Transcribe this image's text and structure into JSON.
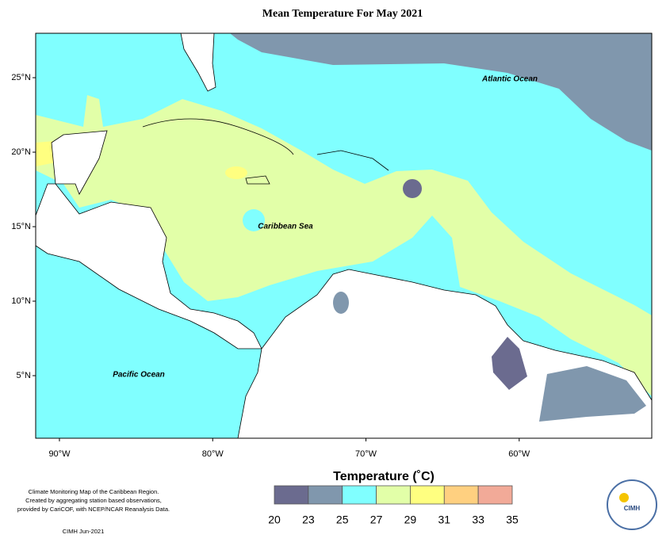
{
  "title": "Mean Temperature For May 2021",
  "map": {
    "lat_ticks": [
      {
        "value": 25,
        "label": "25°N"
      },
      {
        "value": 20,
        "label": "20°N"
      },
      {
        "value": 15,
        "label": "15°N"
      },
      {
        "value": 10,
        "label": "10°N"
      },
      {
        "value": 5,
        "label": "5°N"
      }
    ],
    "lon_ticks": [
      {
        "value": -90,
        "label": "90°W"
      },
      {
        "value": -80,
        "label": "80°W"
      },
      {
        "value": -70,
        "label": "70°W"
      },
      {
        "value": -60,
        "label": "60°W"
      }
    ],
    "labels": [
      "Atlantic Ocean",
      "Caribbean Sea",
      "Pacific Ocean"
    ]
  },
  "legend": {
    "title": "Temperature (˚C)",
    "ticks": [
      20,
      23,
      25,
      27,
      29,
      31,
      33,
      35
    ],
    "colors": [
      "#6b6b8f",
      "#8097ad",
      "#80ffff",
      "#e2ffa8",
      "#ffff80",
      "#ffd080",
      "#f2aa98"
    ]
  },
  "notes": [
    "Climate Monitoring Map of the Caribbean Region.",
    "Created by aggregating station based observations,",
    "provided by CariCOF, with NCEP/NCAR Reanalysis Data."
  ],
  "footer": "CIMH Jun-2021",
  "logo": "CIMH"
}
